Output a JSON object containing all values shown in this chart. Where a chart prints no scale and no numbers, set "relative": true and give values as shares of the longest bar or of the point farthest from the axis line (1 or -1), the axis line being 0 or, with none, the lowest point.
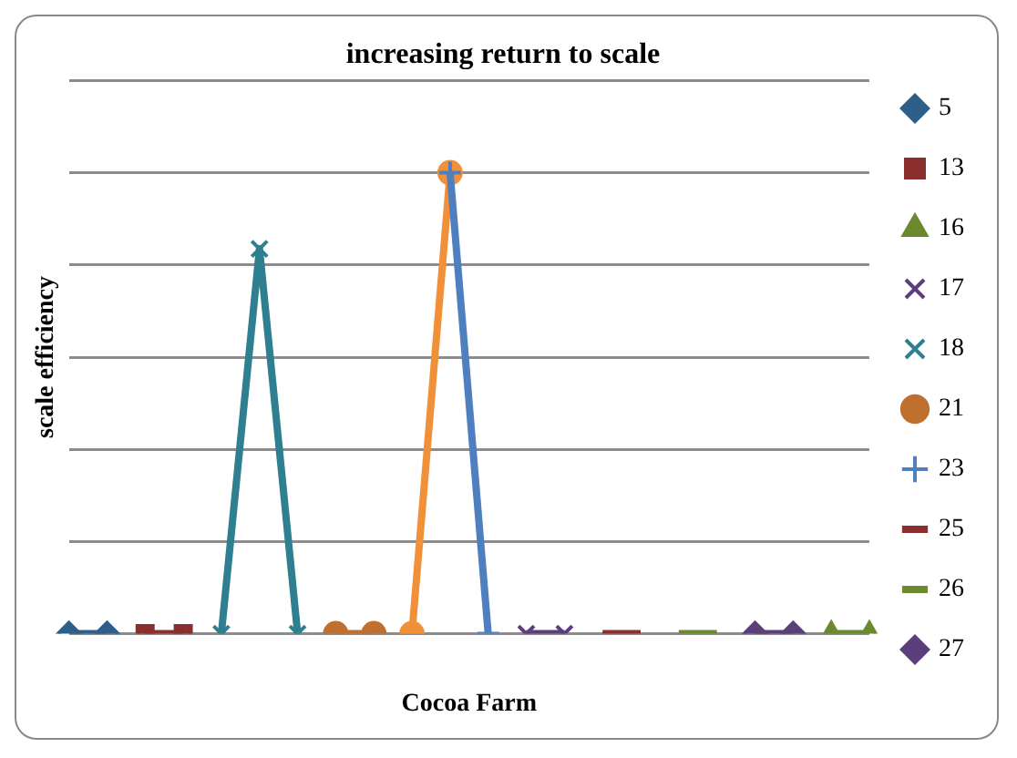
{
  "chart_data": {
    "type": "line",
    "title": "increasing return to scale",
    "xlabel": "Cocoa Farm",
    "ylabel": "scale efficiency",
    "relative": true,
    "grid": "y",
    "legend": "right",
    "categories": [
      null,
      null,
      null,
      null,
      null,
      null,
      null,
      null,
      null,
      null,
      null,
      null,
      null,
      null,
      null,
      null,
      null,
      null,
      null,
      null,
      null,
      null
    ],
    "series": [
      {
        "name": "5",
        "color": "#2e5f8a",
        "marker": "diamond",
        "values": [
          0,
          0,
          null,
          null,
          null,
          null,
          null,
          null,
          null,
          null,
          null,
          null,
          null,
          null,
          null,
          null,
          null,
          null,
          null,
          null,
          null,
          null
        ]
      },
      {
        "name": "13",
        "color": "#8b2e2e",
        "marker": "square",
        "values": [
          null,
          null,
          0,
          0,
          null,
          null,
          null,
          null,
          null,
          null,
          null,
          null,
          null,
          null,
          null,
          null,
          null,
          null,
          null,
          null,
          null,
          null
        ]
      },
      {
        "name": "16",
        "color": "#6b8a2e",
        "marker": "triangle",
        "values": [
          null,
          null,
          null,
          null,
          null,
          null,
          null,
          null,
          null,
          null,
          null,
          null,
          null,
          null,
          null,
          null,
          null,
          null,
          null,
          null,
          0,
          0
        ]
      },
      {
        "name": "17",
        "color": "#5a3f7a",
        "marker": "cross",
        "values": [
          null,
          null,
          null,
          null,
          null,
          null,
          null,
          null,
          null,
          null,
          null,
          null,
          0,
          0,
          null,
          null,
          null,
          null,
          null,
          null,
          null,
          null
        ]
      },
      {
        "name": "18",
        "color": "#2e7f8f",
        "marker": "cross",
        "values": [
          null,
          null,
          null,
          null,
          0,
          0.835,
          0,
          null,
          null,
          null,
          null,
          null,
          null,
          null,
          null,
          null,
          null,
          null,
          null,
          null,
          null,
          null
        ]
      },
      {
        "name": "21",
        "color": "#c0702e",
        "marker": "circle",
        "values": [
          null,
          null,
          null,
          null,
          null,
          null,
          null,
          0,
          0,
          null,
          null,
          null,
          null,
          null,
          null,
          null,
          null,
          null,
          null,
          null,
          null,
          null
        ]
      },
      {
        "name": "23",
        "color": "#4f7fbf",
        "marker": "plus",
        "values": [
          null,
          null,
          null,
          null,
          null,
          null,
          null,
          null,
          null,
          null,
          1,
          0,
          null,
          null,
          null,
          null,
          null,
          null,
          null,
          null,
          null,
          null
        ]
      },
      {
        "name": "25",
        "color": "#8b2e2e",
        "marker": "none",
        "values": [
          null,
          null,
          null,
          null,
          null,
          null,
          null,
          null,
          null,
          null,
          null,
          null,
          null,
          null,
          0,
          0,
          null,
          null,
          null,
          null,
          null,
          null
        ]
      },
      {
        "name": "26",
        "color": "#6b8a2e",
        "marker": "none",
        "values": [
          null,
          null,
          null,
          null,
          null,
          null,
          null,
          null,
          null,
          null,
          null,
          null,
          null,
          null,
          null,
          null,
          0,
          0,
          null,
          null,
          null,
          null
        ]
      },
      {
        "name": "27",
        "color": "#5a3f7a",
        "marker": "diamond",
        "values": [
          null,
          null,
          null,
          null,
          null,
          null,
          null,
          null,
          null,
          null,
          null,
          null,
          null,
          null,
          null,
          null,
          null,
          null,
          0,
          0,
          null,
          null
        ]
      },
      {
        "color": "#f0913a",
        "marker": "circle",
        "values": [
          null,
          null,
          null,
          null,
          null,
          null,
          null,
          null,
          null,
          0,
          1,
          null,
          null,
          null,
          null,
          null,
          null,
          null,
          null,
          null,
          null,
          null
        ]
      }
    ]
  }
}
